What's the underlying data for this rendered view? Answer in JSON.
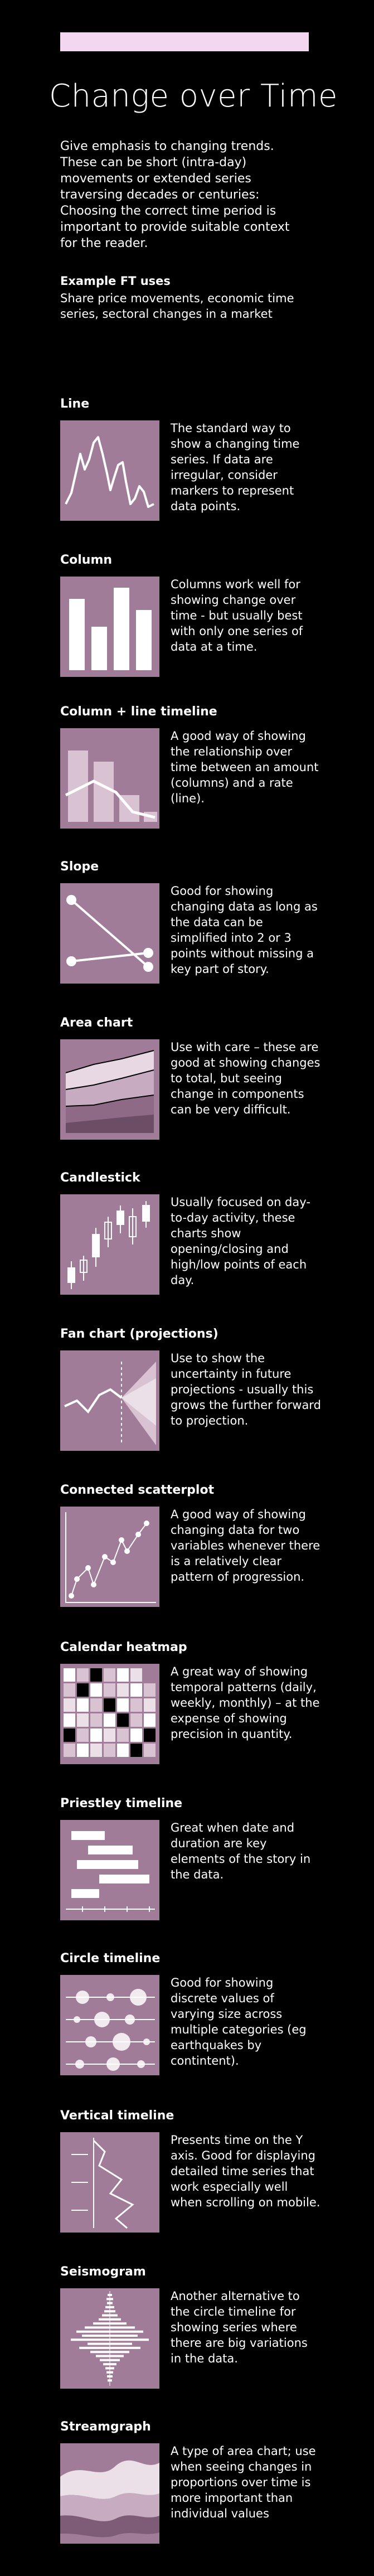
{
  "header": {
    "title": "Change over Time",
    "intro": "Give emphasis to changing trends. These can be short (intra-day) movements or extended series traversing decades or centuries: Choosing the correct time period is important to provide suitable context for the reader.",
    "uses_heading": "Example FT uses",
    "uses_text": "Share price movements, economic time series, sectoral changes in a market"
  },
  "sections": [
    {
      "title": "Line",
      "desc": "The standard way to show a changing time series. If data are irregular, consider markers to represent data points.",
      "icon": "line-chart-icon"
    },
    {
      "title": "Column",
      "desc": "Columns work well for showing change over time - but usually best with only one series of data at a time.",
      "icon": "column-chart-icon"
    },
    {
      "title": "Column + line timeline",
      "desc": "A good way of showing the relationship over time between an amount (columns) and a rate (line).",
      "icon": "column-line-icon"
    },
    {
      "title": "Slope",
      "desc": "Good for showing changing data as long as the data can be simplified into 2 or 3 points without missing a key part of story.",
      "icon": "slope-chart-icon"
    },
    {
      "title": "Area chart",
      "desc": "Use with care – these are good at showing changes to total, but seeing change in components can be very difficult.",
      "icon": "area-chart-icon"
    },
    {
      "title": "Candlestick",
      "desc": "Usually focused on day-to-day activity, these charts show opening/closing and high/low points of each day.",
      "icon": "candlestick-icon"
    },
    {
      "title": "Fan chart (projections)",
      "desc": "Use to show the uncertainty in future projections - usually this grows the further forward to projection.",
      "icon": "fan-chart-icon"
    },
    {
      "title": "Connected scatterplot",
      "desc": "A good way of showing changing data for two variables whenever there is a relatively clear pattern of progression.",
      "icon": "connected-scatter-icon"
    },
    {
      "title": "Calendar heatmap",
      "desc": "A great way of showing temporal patterns (daily, weekly, monthly) – at the expense of showing precision in quantity.",
      "icon": "calendar-heatmap-icon"
    },
    {
      "title": "Priestley timeline",
      "desc": "Great when date and duration are key elements of the story in the data.",
      "icon": "priestley-timeline-icon"
    },
    {
      "title": "Circle timeline",
      "desc": "Good for showing discrete values of varying size across multiple categories (eg earthquakes by contintent).",
      "icon": "circle-timeline-icon"
    },
    {
      "title": "Vertical timeline",
      "desc": "Presents time on the Y axis. Good for displaying detailed time series that work especially well when scrolling on mobile.",
      "icon": "vertical-timeline-icon"
    },
    {
      "title": "Seismogram",
      "desc": "Another alternative to the circle timeline for showing series where there are big variations in the data.",
      "icon": "seismogram-icon"
    },
    {
      "title": "Streamgraph",
      "desc": "A type of area chart; use when seeing changes in proportions over time is more important than individual values",
      "icon": "streamgraph-icon"
    }
  ],
  "colors": {
    "background": "#000000",
    "thumb": "#a07c98",
    "accent_bar": "#f3d7f0",
    "mark_light": "#ffffff",
    "mark_mid": "#d9c3d3"
  }
}
